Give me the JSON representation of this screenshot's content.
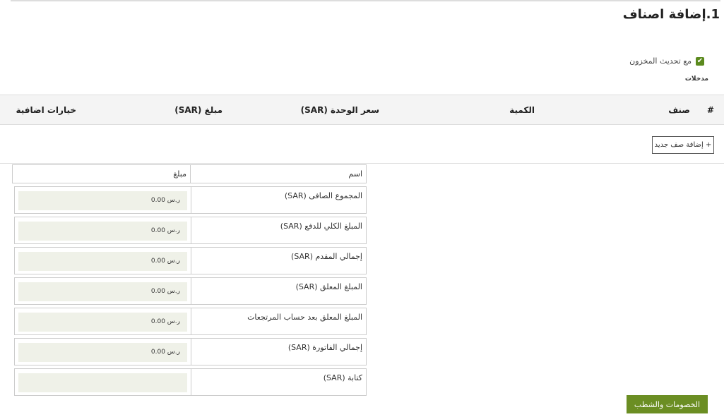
{
  "title": "1.إضافة اصناف",
  "update_stock": {
    "label": "مع تحديث المخزون",
    "checked": true
  },
  "inputs_label": "مدخلات",
  "items_table": {
    "columns": [
      "#",
      "صنف",
      "الكمية",
      "سعر الوحدة (SAR)",
      "مبلغ (SAR)",
      "خيارات اضافية"
    ]
  },
  "add_row_label": "+ إضافة صف جديد",
  "summary": {
    "headers": {
      "name": "اسم",
      "amount": "مبلغ"
    },
    "rows": [
      {
        "name": "المجموع الصافى (SAR)",
        "amount": "ر.س 0.00"
      },
      {
        "name": "المبلغ الكلي للدفع (SAR)",
        "amount": "ر.س 0.00"
      },
      {
        "name": "إجمالي المقدم (SAR)",
        "amount": "ر.س 0.00"
      },
      {
        "name": "المبلغ المعلق (SAR)",
        "amount": "ر.س 0.00"
      },
      {
        "name": "المبلغ المعلق بعد حساب المرتجعات",
        "amount": "ر.س 0.00"
      },
      {
        "name": "إجمالي الفاتورة (SAR)",
        "amount": "ر.س 0.00"
      },
      {
        "name": "كتابة (SAR)",
        "amount": ""
      }
    ]
  },
  "discounts_button": "الخصومات والشطب",
  "colors": {
    "accent": "#6b8e23",
    "amount_bg": "#eff1e8"
  }
}
